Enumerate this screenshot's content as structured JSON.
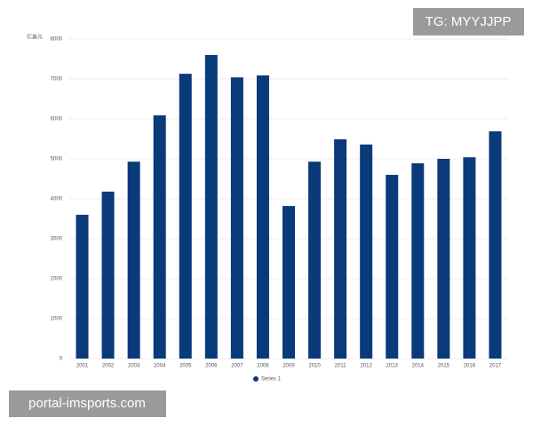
{
  "chart_data": {
    "type": "bar",
    "y_label": "亿美元",
    "categories": [
      "2001",
      "2002",
      "2003",
      "2004",
      "2005",
      "2006",
      "2007",
      "2008",
      "2009",
      "2010",
      "2011",
      "2012",
      "2013",
      "2014",
      "2015",
      "2016",
      "2017"
    ],
    "series": [
      {
        "name": "Series 1",
        "color": "#0b3a7a",
        "values": [
          3600,
          4180,
          4930,
          6090,
          7130,
          7600,
          7040,
          7090,
          3820,
          4930,
          5490,
          5360,
          4600,
          4890,
          5000,
          5040,
          5690
        ]
      }
    ],
    "ylim": [
      0,
      8000
    ],
    "yticks": [
      0,
      1000,
      2000,
      3000,
      4000,
      5000,
      6000,
      7000,
      8000
    ],
    "grid": true,
    "legend": "bottom"
  },
  "watermarks": {
    "top": "TG: MYYJJPP",
    "bottom": "portal-imsports.com"
  }
}
